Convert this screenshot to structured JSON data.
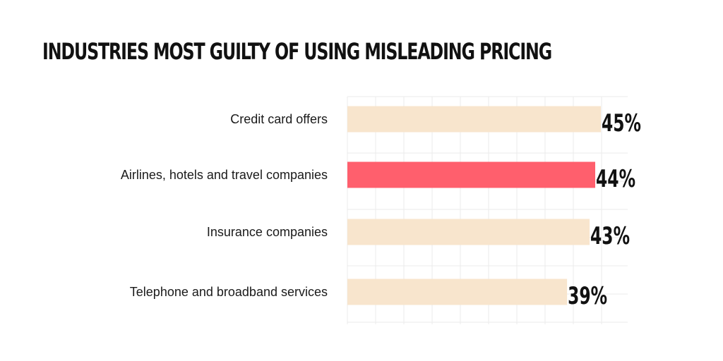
{
  "title": "INDUSTRIES MOST GUILTY OF USING MISLEADING PRICING",
  "chart_data": {
    "type": "bar",
    "orientation": "horizontal",
    "title": "INDUSTRIES MOST GUILTY OF USING MISLEADING PRICING",
    "categories": [
      "Credit card offers",
      "Airlines, hotels and travel companies",
      "Insurance companies",
      "Telephone and broadband services"
    ],
    "values": [
      45,
      44,
      43,
      39
    ],
    "value_labels": [
      "45%",
      "44%",
      "43%",
      "39%"
    ],
    "unit": "%",
    "xlim": [
      0,
      50
    ],
    "grid": true,
    "highlight_index": 1,
    "colors": {
      "bar": "#f8e5cd",
      "highlight": "#ff5f6d",
      "text": "#111111",
      "grid": "#ebebeb"
    }
  }
}
